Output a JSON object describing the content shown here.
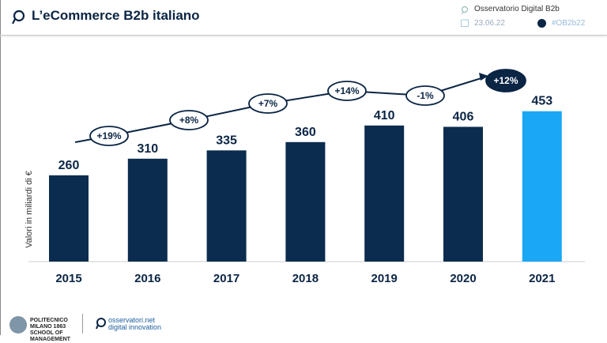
{
  "header": {
    "title": "L’eCommerce B2b italiano",
    "observatory": "Osservatorio Digital B2b",
    "date": "23.06.22",
    "hashtag": "#OB2b22"
  },
  "footer": {
    "logo1_text": "POLITECNICO MILANO 1863 SCHOOL OF MANAGEMENT",
    "logo2_text": "osservatori.net digital innovation"
  },
  "colors": {
    "bar": "#0b2c4e",
    "highlight": "#1aa7f5",
    "text": "#0b2545"
  },
  "chart_data": {
    "type": "bar",
    "ylabel": "Valori in miliardi di €",
    "categories": [
      "2015",
      "2016",
      "2017",
      "2018",
      "2019",
      "2020",
      "2021"
    ],
    "values": [
      260,
      310,
      335,
      360,
      410,
      406,
      453
    ],
    "growth_labels": [
      "+19%",
      "+8%",
      "+7%",
      "+14%",
      "-1%",
      "+12%"
    ],
    "highlighted": "2021",
    "grid": false
  }
}
